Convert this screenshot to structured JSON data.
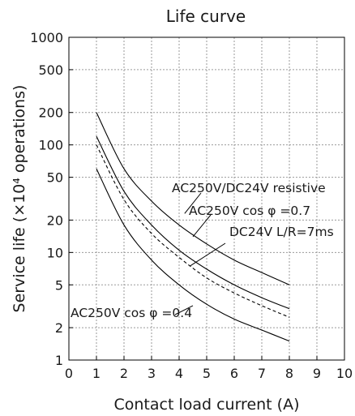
{
  "chart_data": {
    "type": "line",
    "title": "Life curve",
    "xlabel": "Contact load current (A)",
    "ylabel": "Service life (×10⁴ operations)",
    "xlim": [
      0,
      10
    ],
    "ylim": [
      1,
      1000
    ],
    "yscale": "log",
    "grid": true,
    "x_ticks": [
      "0",
      "1",
      "2",
      "3",
      "4",
      "5",
      "6",
      "7",
      "8",
      "9",
      "10"
    ],
    "y_ticks": [
      {
        "value": 1,
        "label": "1"
      },
      {
        "value": 2,
        "label": "2"
      },
      {
        "value": 5,
        "label": "5"
      },
      {
        "value": 10,
        "label": "10"
      },
      {
        "value": 20,
        "label": "20"
      },
      {
        "value": 50,
        "label": "50"
      },
      {
        "value": 100,
        "label": "100"
      },
      {
        "value": 200,
        "label": "200"
      },
      {
        "value": 500,
        "label": "500"
      },
      {
        "value": 1000,
        "label": "1000"
      }
    ],
    "series": [
      {
        "name": "AC250V/DC24V resistive",
        "style": "solid",
        "points": [
          [
            1,
            200
          ],
          [
            2,
            60
          ],
          [
            3,
            30
          ],
          [
            4,
            18
          ],
          [
            5,
            12
          ],
          [
            6,
            8.5
          ],
          [
            7,
            6.5
          ],
          [
            8,
            5
          ]
        ],
        "label_anchor": [
          4.2,
          23
        ]
      },
      {
        "name": "AC250V cosφ=0.7",
        "style": "solid",
        "points": [
          [
            1,
            120
          ],
          [
            2,
            37
          ],
          [
            3,
            18
          ],
          [
            4,
            10.5
          ],
          [
            5,
            7
          ],
          [
            6,
            5
          ],
          [
            7,
            3.8
          ],
          [
            8,
            3
          ]
        ],
        "label_anchor": [
          4.5,
          14
        ]
      },
      {
        "name": "DC24V L/R=7ms",
        "style": "dashed",
        "points": [
          [
            1,
            100
          ],
          [
            2,
            31
          ],
          [
            3,
            15
          ],
          [
            4,
            9
          ],
          [
            5,
            5.8
          ],
          [
            6,
            4.2
          ],
          [
            7,
            3.2
          ],
          [
            8,
            2.5
          ]
        ],
        "label_anchor": [
          4.4,
          7.5
        ]
      },
      {
        "name": "AC250V cosφ=0.4",
        "style": "solid",
        "points": [
          [
            1,
            60
          ],
          [
            2,
            18
          ],
          [
            3,
            8.5
          ],
          [
            4,
            5
          ],
          [
            5,
            3.3
          ],
          [
            6,
            2.4
          ],
          [
            7,
            1.9
          ],
          [
            8,
            1.5
          ]
        ],
        "label_anchor": [
          4.5,
          3.2
        ]
      }
    ],
    "annotations": [
      {
        "series": "AC250V/DC24V resistive",
        "text": "AC250V/DC24V resistive"
      },
      {
        "series": "AC250V cosφ=0.7",
        "text": "AC250V cos φ =0.7"
      },
      {
        "series": "DC24V L/R=7ms",
        "text": "DC24V L/R=7ms"
      },
      {
        "series": "AC250V cosφ=0.4",
        "text": "AC250V cos φ =0.4"
      }
    ]
  }
}
